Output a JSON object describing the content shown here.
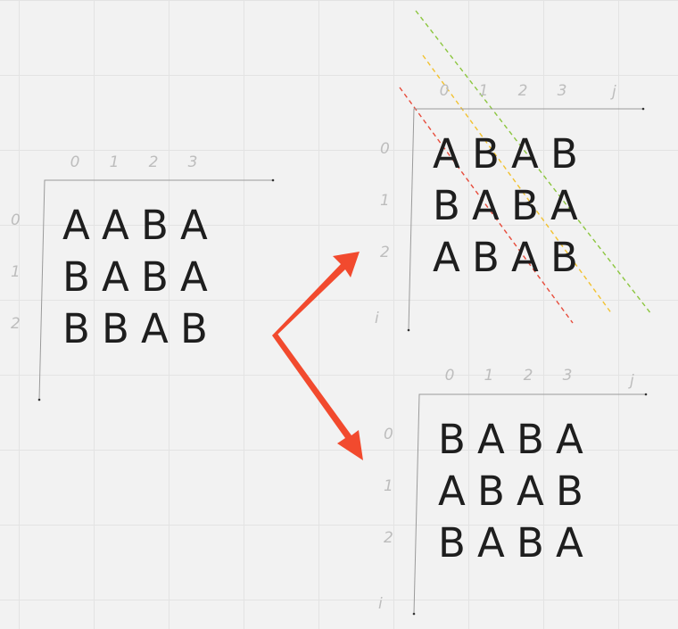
{
  "matrices": [
    {
      "col_labels": [
        "0",
        "1",
        "2",
        "3"
      ],
      "row_labels": [
        "0",
        "1",
        "2"
      ],
      "corner_col_label": "",
      "corner_row_label": "",
      "rows": [
        [
          "A",
          "A",
          "B",
          "A"
        ],
        [
          "B",
          "A",
          "B",
          "A"
        ],
        [
          "B",
          "B",
          "A",
          "B"
        ]
      ]
    },
    {
      "col_labels": [
        "0",
        "1",
        "2",
        "3"
      ],
      "row_labels": [
        "0",
        "1",
        "2"
      ],
      "corner_col_label": "j",
      "corner_row_label": "i",
      "rows": [
        [
          "A",
          "B",
          "A",
          "B"
        ],
        [
          "B",
          "A",
          "B",
          "A"
        ],
        [
          "A",
          "B",
          "A",
          "B"
        ]
      ]
    },
    {
      "col_labels": [
        "0",
        "1",
        "2",
        "3"
      ],
      "row_labels": [
        "0",
        "1",
        "2"
      ],
      "corner_col_label": "j",
      "corner_row_label": "i",
      "rows": [
        [
          "B",
          "A",
          "B",
          "A"
        ],
        [
          "A",
          "B",
          "A",
          "B"
        ],
        [
          "B",
          "A",
          "B",
          "A"
        ]
      ]
    }
  ],
  "colors": {
    "arrow": "#f24a2e",
    "diagonal_red": "#e74c3c",
    "diagonal_yellow": "#f2c230",
    "diagonal_green": "#8cc63f"
  }
}
